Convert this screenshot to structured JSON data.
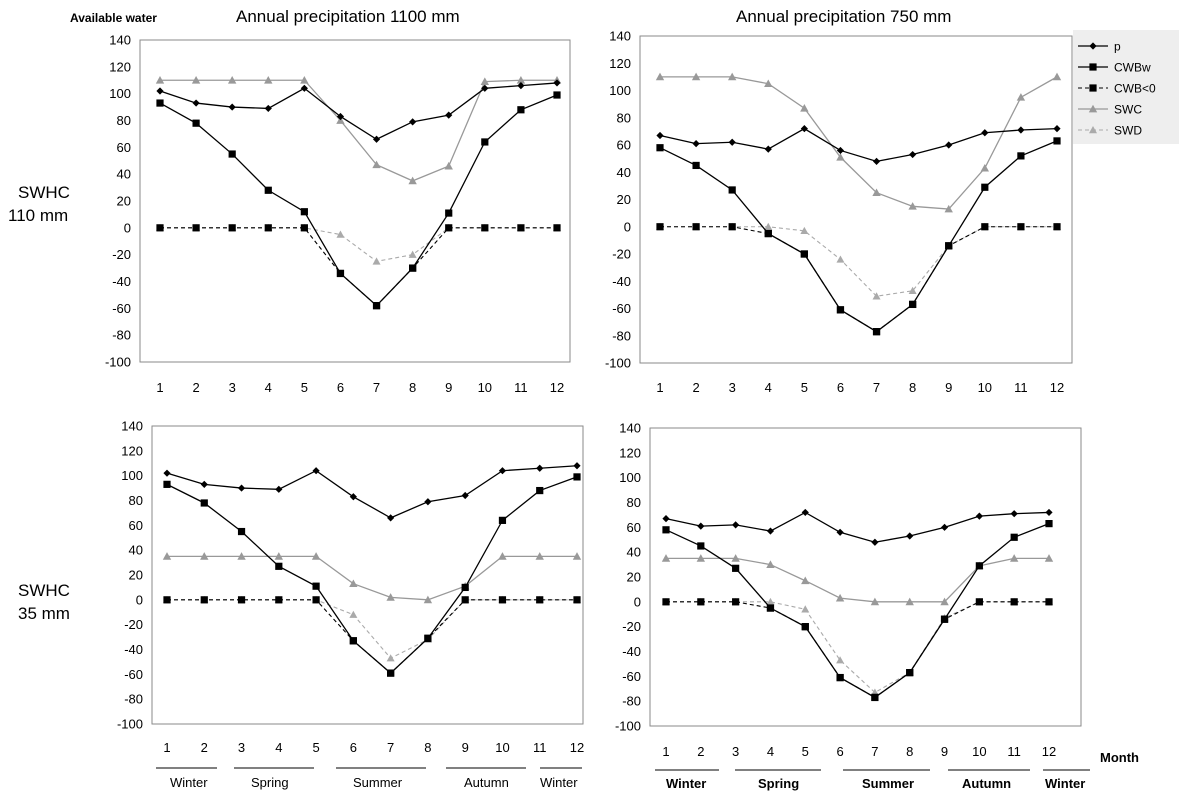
{
  "figure": {
    "y_axis_label": "Available water",
    "x_axis_label": "Month",
    "column_titles": [
      "Annual precipitation 1100 mm",
      "Annual precipitation 750 mm"
    ],
    "row_labels": [
      [
        "SWHC",
        "110 mm"
      ],
      [
        "SWHC",
        "35 mm"
      ]
    ]
  },
  "legend": {
    "placement": "top-right",
    "entries": [
      "p",
      "CWBw",
      "CWB<0",
      "SWC",
      "SWD"
    ]
  },
  "seasons": [
    "Winter",
    "Spring",
    "Summer",
    "Autumn",
    "Winter"
  ],
  "colors": {
    "p": "#000000",
    "CWBw": "#000000",
    "CWB<0": "#000000",
    "SWC": "#999999",
    "SWD": "#aaaaaa",
    "legend_bg": "#eeeeee"
  },
  "chart_data": [
    {
      "type": "line",
      "x": [
        1,
        2,
        3,
        4,
        5,
        6,
        7,
        8,
        9,
        10,
        11,
        12
      ],
      "ylim": [
        -100,
        140
      ],
      "yticks": [
        -100,
        -80,
        -60,
        -40,
        -20,
        0,
        20,
        40,
        60,
        80,
        100,
        120,
        140
      ],
      "series": [
        {
          "name": "p",
          "values": [
            102,
            93,
            90,
            89,
            104,
            83,
            66,
            79,
            84,
            104,
            106,
            108
          ]
        },
        {
          "name": "CWBw",
          "values": [
            93,
            78,
            55,
            28,
            12,
            -34,
            -58,
            -30,
            11,
            64,
            88,
            99
          ]
        },
        {
          "name": "CWB<0",
          "values": [
            0,
            0,
            0,
            0,
            0,
            -34,
            -58,
            -30,
            0,
            0,
            0,
            0
          ]
        },
        {
          "name": "SWC",
          "values": [
            110,
            110,
            110,
            110,
            110,
            80,
            47,
            35,
            46,
            109,
            110,
            110
          ]
        },
        {
          "name": "SWD",
          "values": [
            0,
            0,
            0,
            0,
            0,
            -5,
            -25,
            -20,
            0,
            0,
            0,
            0
          ]
        }
      ]
    },
    {
      "type": "line",
      "x": [
        1,
        2,
        3,
        4,
        5,
        6,
        7,
        8,
        9,
        10,
        11,
        12
      ],
      "ylim": [
        -100,
        140
      ],
      "yticks": [
        -100,
        -80,
        -60,
        -40,
        -20,
        0,
        20,
        40,
        60,
        80,
        100,
        120,
        140
      ],
      "series": [
        {
          "name": "p",
          "values": [
            67,
            61,
            62,
            57,
            72,
            56,
            48,
            53,
            60,
            69,
            71,
            72
          ]
        },
        {
          "name": "CWBw",
          "values": [
            58,
            45,
            27,
            -5,
            -20,
            -61,
            -77,
            -57,
            -14,
            29,
            52,
            63
          ]
        },
        {
          "name": "CWB<0",
          "values": [
            0,
            0,
            0,
            -5,
            -20,
            -61,
            -77,
            -57,
            -14,
            0,
            0,
            0
          ]
        },
        {
          "name": "SWC",
          "values": [
            110,
            110,
            110,
            105,
            87,
            51,
            25,
            15,
            13,
            43,
            95,
            110
          ]
        },
        {
          "name": "SWD",
          "values": [
            0,
            0,
            0,
            0,
            -3,
            -24,
            -51,
            -47,
            -14,
            0,
            0,
            0
          ]
        }
      ]
    },
    {
      "type": "line",
      "x": [
        1,
        2,
        3,
        4,
        5,
        6,
        7,
        8,
        9,
        10,
        11,
        12
      ],
      "ylim": [
        -100,
        140
      ],
      "yticks": [
        -100,
        -80,
        -60,
        -40,
        -20,
        0,
        20,
        40,
        60,
        80,
        100,
        120,
        140
      ],
      "series": [
        {
          "name": "p",
          "values": [
            102,
            93,
            90,
            89,
            104,
            83,
            66,
            79,
            84,
            104,
            106,
            108
          ]
        },
        {
          "name": "CWBw",
          "values": [
            93,
            78,
            55,
            27,
            11,
            -33,
            -59,
            -31,
            10,
            64,
            88,
            99
          ]
        },
        {
          "name": "CWB<0",
          "values": [
            0,
            0,
            0,
            0,
            0,
            -33,
            -59,
            -31,
            0,
            0,
            0,
            0
          ]
        },
        {
          "name": "SWC",
          "values": [
            35,
            35,
            35,
            35,
            35,
            13,
            2,
            0,
            11,
            35,
            35,
            35
          ]
        },
        {
          "name": "SWD",
          "values": [
            0,
            0,
            0,
            0,
            0,
            -12,
            -47,
            -32,
            0,
            0,
            0,
            0
          ]
        }
      ]
    },
    {
      "type": "line",
      "x": [
        1,
        2,
        3,
        4,
        5,
        6,
        7,
        8,
        9,
        10,
        11,
        12
      ],
      "ylim": [
        -100,
        140
      ],
      "yticks": [
        -100,
        -80,
        -60,
        -40,
        -20,
        0,
        20,
        40,
        60,
        80,
        100,
        120,
        140
      ],
      "series": [
        {
          "name": "p",
          "values": [
            67,
            61,
            62,
            57,
            72,
            56,
            48,
            53,
            60,
            69,
            71,
            72
          ]
        },
        {
          "name": "CWBw",
          "values": [
            58,
            45,
            27,
            -5,
            -20,
            -61,
            -77,
            -57,
            -14,
            29,
            52,
            63
          ]
        },
        {
          "name": "CWB<0",
          "values": [
            0,
            0,
            0,
            -5,
            -20,
            -61,
            -77,
            -57,
            -14,
            0,
            0,
            0
          ]
        },
        {
          "name": "SWC",
          "values": [
            35,
            35,
            35,
            30,
            17,
            3,
            0,
            0,
            0,
            29,
            35,
            35
          ]
        },
        {
          "name": "SWD",
          "values": [
            0,
            0,
            0,
            0,
            -6,
            -47,
            -73,
            -57,
            -13,
            0,
            0,
            0
          ]
        }
      ]
    }
  ]
}
